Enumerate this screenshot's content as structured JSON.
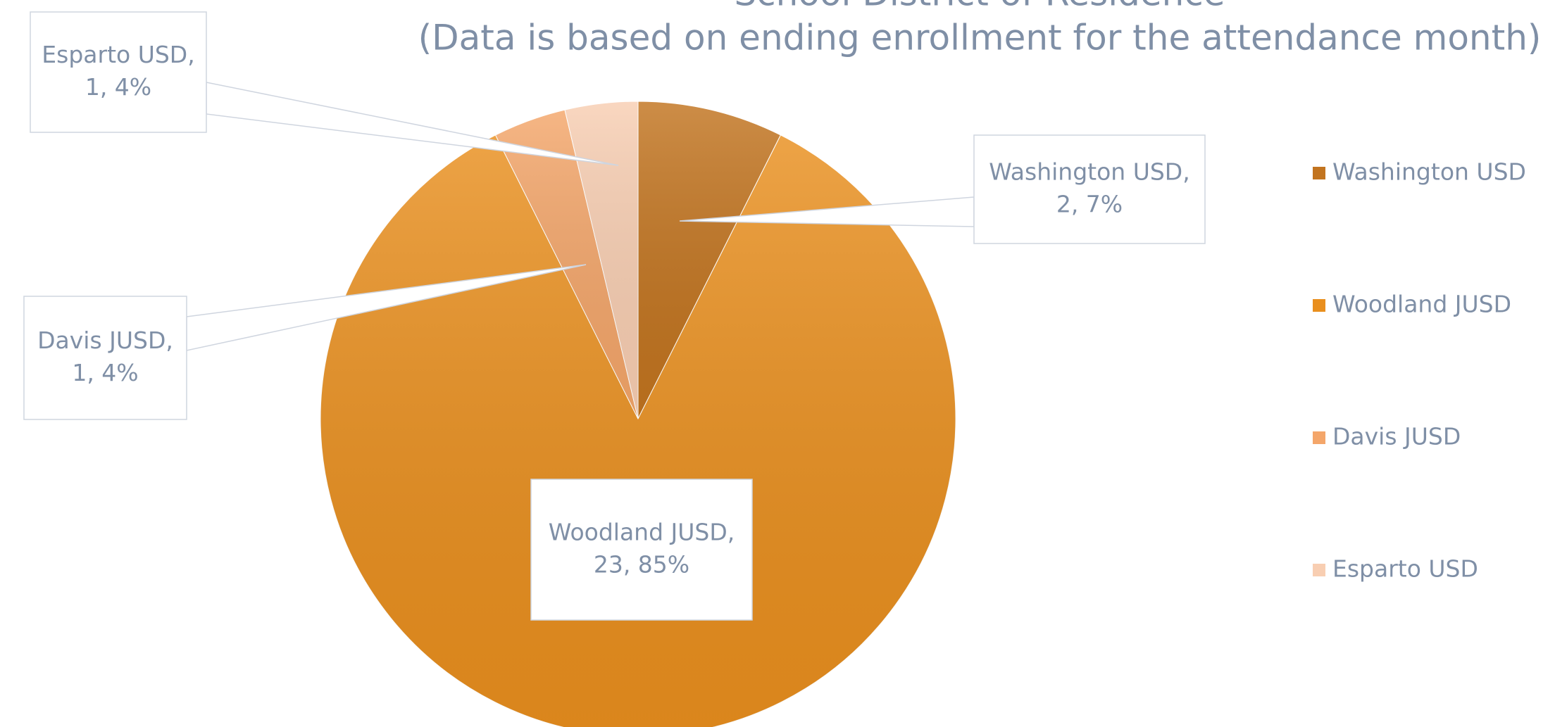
{
  "chart_data": {
    "type": "pie",
    "title": "School District of Residence",
    "subtitle": "(Data is based on ending enrollment  for the attendance month)",
    "categories": [
      "Washington USD",
      "Woodland JUSD",
      "Davis JUSD",
      "Esparto USD"
    ],
    "values": [
      2,
      23,
      1,
      1
    ],
    "value_labels": [
      [
        "Washington USD,",
        "2, 7%"
      ],
      [
        "Woodland JUSD,",
        "23, 85%"
      ],
      [
        "Davis JUSD,",
        "1, 4%"
      ],
      [
        "Esparto USD,",
        "1, 4%"
      ]
    ],
    "colors": [
      "#c2741f",
      "#e98f1e",
      "#f4a66a",
      "#f8ceb2"
    ],
    "legend": "right"
  }
}
